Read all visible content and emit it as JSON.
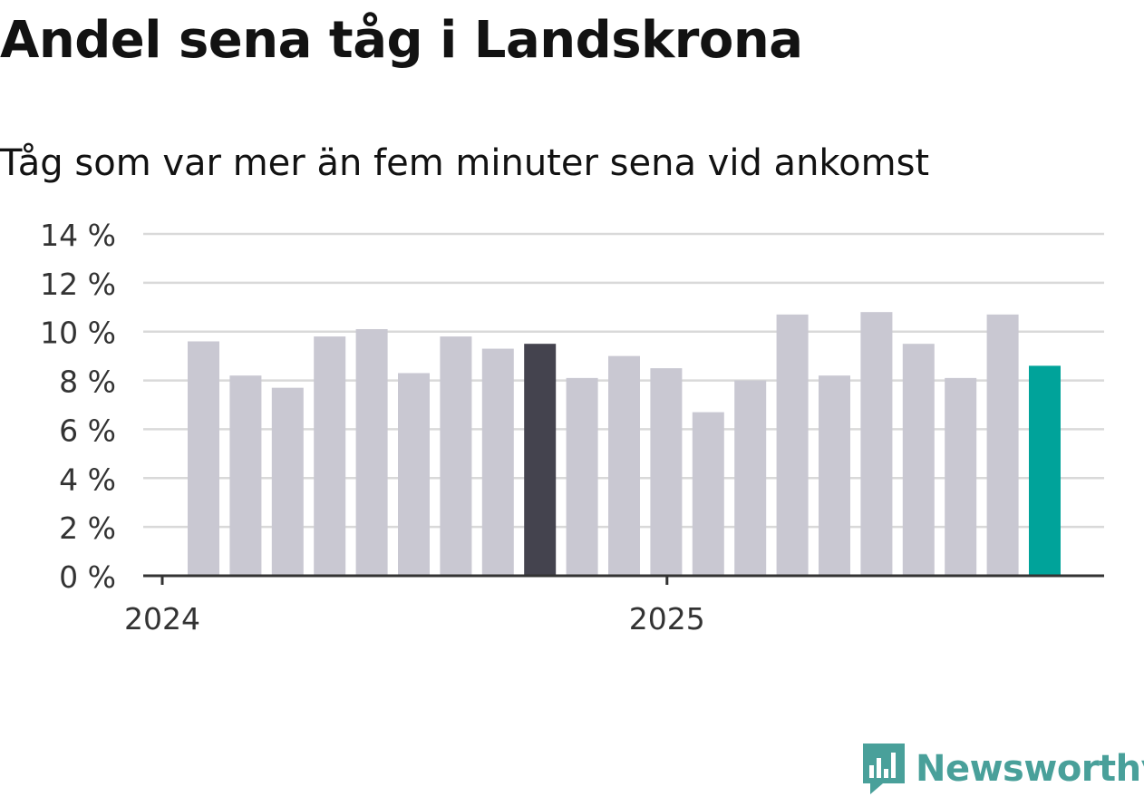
{
  "title": "Andel sena tåg i Landskrona",
  "subtitle": "Tåg som var mer än fem minuter sena vid ankomst",
  "brand": {
    "name": "Newsworthy",
    "color": "#49a09a",
    "icon": "newsworthy-logo-icon"
  },
  "colors": {
    "bar": "#c9c8d2",
    "highlight_prev": "#44434e",
    "highlight_current": "#00a39a",
    "grid": "#d9d9d9",
    "axis": "#333333"
  },
  "chart_data": {
    "type": "bar",
    "x": [
      "2024-01",
      "2024-02",
      "2024-03",
      "2024-04",
      "2024-05",
      "2024-06",
      "2024-07",
      "2024-08",
      "2024-09",
      "2024-10",
      "2024-11",
      "2024-12",
      "2025-01",
      "2025-02",
      "2025-03",
      "2025-04",
      "2025-05",
      "2025-06",
      "2025-07",
      "2025-08",
      "2025-09"
    ],
    "values": [
      9.6,
      8.2,
      7.7,
      9.8,
      10.1,
      8.3,
      9.8,
      9.3,
      9.5,
      8.1,
      9.0,
      8.5,
      6.7,
      8.0,
      10.7,
      8.2,
      10.8,
      9.5,
      8.1,
      10.7,
      8.6
    ],
    "highlight": {
      "2024-09": "highlight_prev",
      "2025-09": "highlight_current"
    },
    "ylim": [
      0,
      14
    ],
    "yticks": [
      0,
      2,
      4,
      6,
      8,
      10,
      12,
      14
    ],
    "ytick_labels": [
      "0 %",
      "2 %",
      "4 %",
      "6 %",
      "8 %",
      "10 %",
      "12 %",
      "14 %"
    ],
    "xticks": [
      {
        "label": "2024",
        "month": "2024-01"
      },
      {
        "label": "2025",
        "month": "2025-01"
      }
    ],
    "grid": true,
    "xlabel": "",
    "ylabel": ""
  }
}
